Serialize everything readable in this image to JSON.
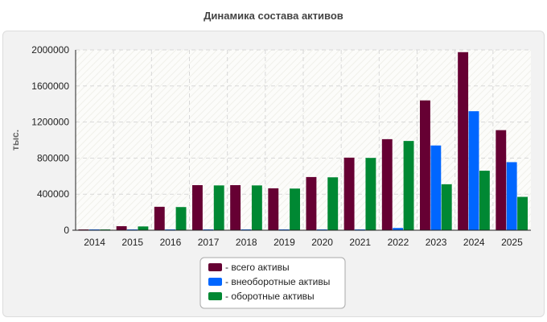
{
  "chart_data": {
    "type": "bar",
    "title": "Динамика состава активов",
    "ylabel": "тыс.",
    "xlabel": "",
    "ylim": [
      0,
      2000000
    ],
    "yticks": [
      0,
      400000,
      800000,
      1200000,
      1600000,
      2000000
    ],
    "grid": true,
    "legend_position": "bottom-center",
    "categories": [
      "2014",
      "2015",
      "2016",
      "2017",
      "2018",
      "2019",
      "2020",
      "2021",
      "2022",
      "2023",
      "2024",
      "2025"
    ],
    "series": [
      {
        "name": "- всего активы",
        "color": "#660033",
        "values": [
          8000,
          45000,
          260000,
          500000,
          500000,
          465000,
          590000,
          805000,
          1010000,
          1440000,
          1975000,
          1110000
        ]
      },
      {
        "name": "- внеоборотные активы",
        "color": "#0066ff",
        "values": [
          3000,
          3000,
          3000,
          3000,
          3000,
          3000,
          3000,
          3000,
          25000,
          940000,
          1320000,
          755000
        ]
      },
      {
        "name": "- оборотные активы",
        "color": "#008833",
        "values": [
          5000,
          42000,
          257000,
          497000,
          497000,
          462000,
          587000,
          802000,
          990000,
          510000,
          660000,
          370000
        ]
      }
    ]
  }
}
